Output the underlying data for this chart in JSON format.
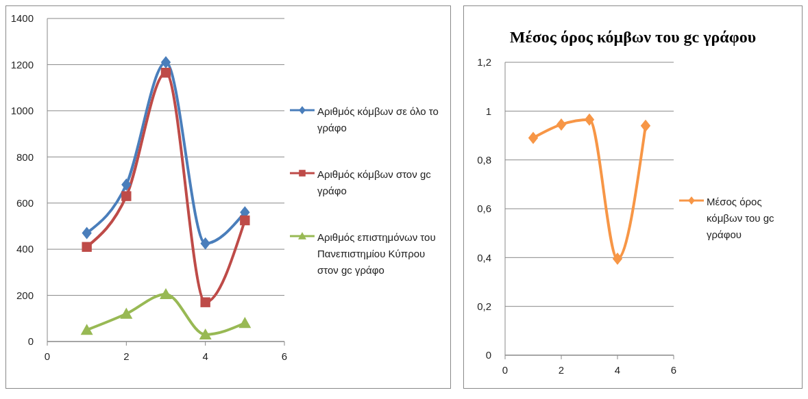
{
  "chart_data": [
    {
      "type": "line",
      "x": [
        1,
        2,
        3,
        4,
        5
      ],
      "xlim": [
        0,
        6
      ],
      "xticks": [
        0,
        2,
        4,
        6
      ],
      "ylim": [
        0,
        1400
      ],
      "yticks": [
        0,
        200,
        400,
        600,
        800,
        1000,
        1200,
        1400
      ],
      "grid": "y",
      "legend": "right",
      "series": [
        {
          "name": "Αριθμός κόμβων σε όλο το γράφο",
          "color": "#4a7ebb",
          "marker": "diamond",
          "values": [
            470,
            680,
            1210,
            425,
            560
          ]
        },
        {
          "name": "Αριθμός κόμβων στον gc γράφο",
          "color": "#be4b48",
          "marker": "square",
          "values": [
            410,
            630,
            1165,
            170,
            525
          ]
        },
        {
          "name": "Αριθμός επιστημόνων του Πανεπιστημίου Κύπρου στον gc γράφο",
          "color": "#98b954",
          "marker": "triangle",
          "values": [
            50,
            120,
            205,
            30,
            80
          ]
        }
      ]
    },
    {
      "type": "line",
      "title": "Μέσος όρος κόμβων του gc γράφου",
      "x": [
        1,
        2,
        3,
        4,
        5
      ],
      "xlim": [
        0,
        6
      ],
      "xticks": [
        0,
        2,
        4,
        6
      ],
      "ylim": [
        0,
        1.2
      ],
      "yticks": [
        0,
        {
          "value": 0.2,
          "label": "0,2"
        },
        {
          "value": 0.4,
          "label": "0,4"
        },
        {
          "value": 0.6,
          "label": "0,6"
        },
        {
          "value": 0.8,
          "label": "0,8"
        },
        1,
        {
          "value": 1.2,
          "label": "1,2"
        }
      ],
      "grid": "y",
      "legend": "right",
      "series": [
        {
          "name": "Μέσος όρος κόμβων του gc γράφου",
          "color": "#f79646",
          "marker": "diamond",
          "values": [
            0.89,
            0.945,
            0.965,
            0.395,
            0.94
          ]
        }
      ]
    }
  ]
}
